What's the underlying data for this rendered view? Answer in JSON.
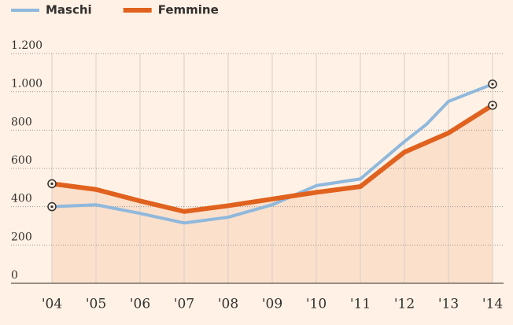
{
  "chart_data": {
    "type": "line",
    "xlim": [
      2004,
      2014
    ],
    "xticks": [
      {
        "value": 2004,
        "label": "'04"
      },
      {
        "value": 2005,
        "label": "'05"
      },
      {
        "value": 2006,
        "label": "'06"
      },
      {
        "value": 2007,
        "label": "'07"
      },
      {
        "value": 2008,
        "label": "'08"
      },
      {
        "value": 2009,
        "label": "'09"
      },
      {
        "value": 2010,
        "label": "'10"
      },
      {
        "value": 2011,
        "label": "'11"
      },
      {
        "value": 2012,
        "label": "'12"
      },
      {
        "value": 2013,
        "label": "'13"
      },
      {
        "value": 2014,
        "label": "'14"
      }
    ],
    "ylim": [
      0,
      1200
    ],
    "yticks": [
      0,
      200,
      400,
      600,
      800,
      {
        "value": 1000,
        "label": "1.000"
      },
      {
        "value": 1200,
        "label": "1.200"
      }
    ],
    "grid": true,
    "series": [
      {
        "name": "Maschi",
        "color": "#8fb8dc",
        "x": [
          2004,
          2005,
          2006,
          2007,
          2008,
          2009,
          2010,
          2011,
          2012,
          2012.5,
          2013,
          2014
        ],
        "values": [
          400,
          410,
          365,
          315,
          345,
          410,
          510,
          545,
          740,
          830,
          950,
          1040
        ]
      },
      {
        "name": "Femmine",
        "color": "#e0621e",
        "x": [
          2004,
          2005,
          2006,
          2007,
          2008,
          2009,
          2010,
          2011,
          2012,
          2013,
          2014
        ],
        "values": [
          520,
          490,
          430,
          375,
          405,
          440,
          475,
          505,
          685,
          785,
          930
        ]
      }
    ]
  }
}
